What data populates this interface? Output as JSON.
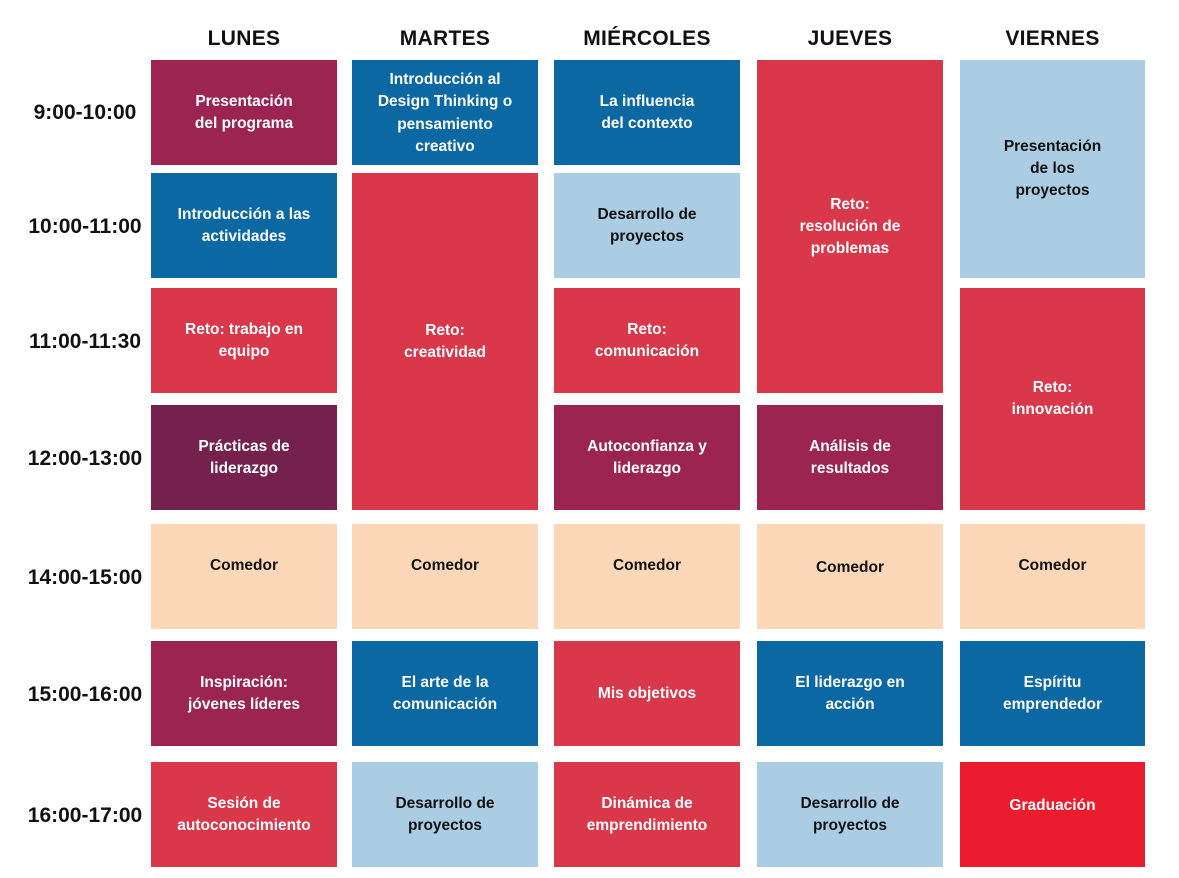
{
  "days": [
    "LUNES",
    "MARTES",
    "MIÉRCOLES",
    "JUEVES",
    "VIERNES"
  ],
  "times": [
    "9:00-10:00",
    "10:00-11:00",
    "11:00-11:30",
    "12:00-13:00",
    "14:00-15:00",
    "15:00-16:00",
    "16:00-17:00"
  ],
  "lunes": {
    "b1": "Presentación del programa",
    "b2": "Introducción a las actividades",
    "b3": "Reto: trabajo en equipo",
    "b4": "Prácticas de liderazgo",
    "b5": "Comedor",
    "b6": "Inspiración: jóvenes líderes",
    "b7": "Sesión de autoconocimiento"
  },
  "martes": {
    "b1": "Introducción al Design Thinking o pensamiento creativo",
    "b2_line1": "Reto:",
    "b2_line2": "creatividad",
    "b3": "Comedor",
    "b4": "El arte de la comunicación",
    "b5": "Desarrollo de proyectos"
  },
  "miercoles": {
    "b1": "La influencia del contexto",
    "b2": "Desarrollo de proyectos",
    "b3_line1": "Reto:",
    "b3_line2": "comunicación",
    "b4": "Autoconfianza y liderazgo",
    "b5": "Comedor",
    "b6": "Mis objetivos",
    "b7": "Dinámica de emprendimiento"
  },
  "jueves": {
    "b1_line1": "Reto:",
    "b1_line2": "resolución de problemas",
    "b2": "Análisis de resultados",
    "b3": "Comedor",
    "b4": "El liderazgo en acción",
    "b5": "Desarrollo de proyectos"
  },
  "viernes": {
    "b1": "Presentación de los proyectos",
    "b2_line1": "Reto:",
    "b2_line2": "innovación",
    "b3": "Comedor",
    "b4": "Espíritu emprendedor",
    "b5": "Graduación"
  },
  "colors": {
    "plum": "#9b2550",
    "purple": "#75214d",
    "blue": "#0b68a3",
    "red": "#d9374a",
    "bright_red": "#eb1c2e",
    "light_blue": "#abcde3",
    "peach": "#fdd8b8"
  }
}
